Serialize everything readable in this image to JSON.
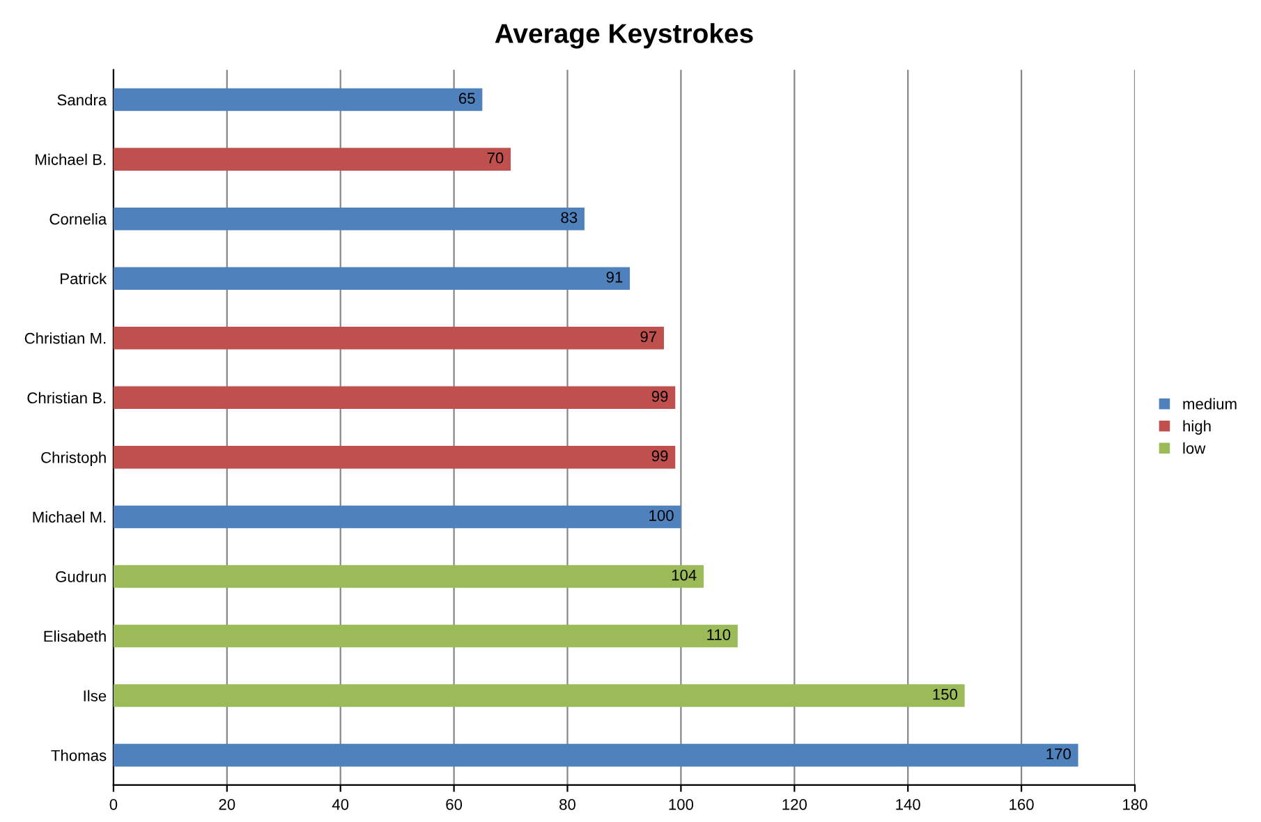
{
  "chart_data": {
    "type": "bar",
    "orientation": "horizontal",
    "title": "Average Keystrokes",
    "categories": [
      "Sandra",
      "Michael B.",
      "Cornelia",
      "Patrick",
      "Christian M.",
      "Christian B.",
      "Christoph",
      "Michael M.",
      "Gudrun",
      "Elisabeth",
      "Ilse",
      "Thomas"
    ],
    "series": [
      {
        "name": "medium",
        "color": "#4f81bd",
        "values": [
          65,
          null,
          83,
          91,
          null,
          null,
          null,
          100,
          null,
          null,
          null,
          170
        ]
      },
      {
        "name": "high",
        "color": "#c0504d",
        "values": [
          null,
          70,
          null,
          null,
          97,
          99,
          99,
          null,
          null,
          null,
          null,
          null
        ]
      },
      {
        "name": "low",
        "color": "#9bbb59",
        "values": [
          null,
          null,
          null,
          null,
          null,
          null,
          null,
          null,
          104,
          110,
          150,
          null
        ]
      }
    ],
    "xlim": [
      0,
      180
    ],
    "xticks": [
      0,
      20,
      40,
      60,
      80,
      100,
      120,
      140,
      160,
      180
    ],
    "grid": "x",
    "legend": "right",
    "data_labels": true
  }
}
